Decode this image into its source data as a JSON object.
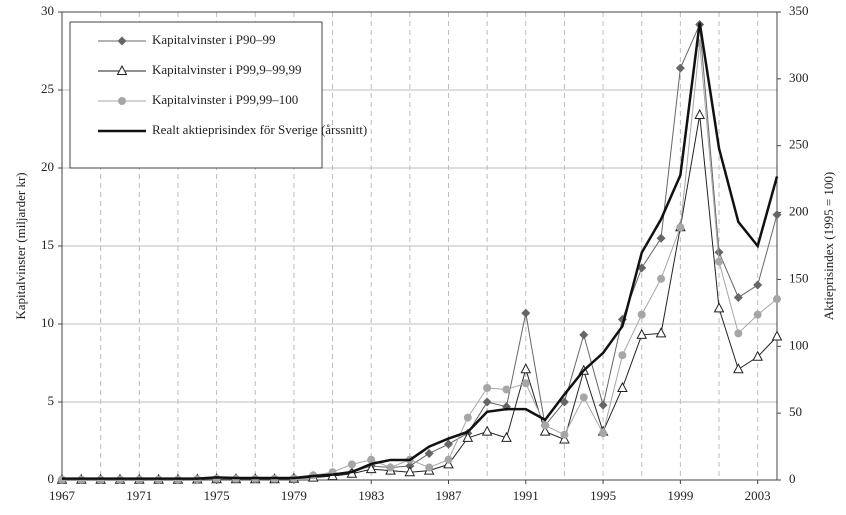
{
  "chart_data": {
    "type": "line",
    "y_label": "Kapitalvinster (miljarder kr)",
    "y2_label": "Aktieprisindex (1995 = 100)",
    "x": [
      1967,
      1968,
      1969,
      1970,
      1971,
      1972,
      1973,
      1974,
      1975,
      1976,
      1977,
      1978,
      1979,
      1980,
      1981,
      1982,
      1983,
      1984,
      1985,
      1986,
      1987,
      1988,
      1989,
      1990,
      1991,
      1992,
      1993,
      1994,
      1995,
      1996,
      1997,
      1998,
      1999,
      2000,
      2001,
      2002,
      2003,
      2004
    ],
    "xlim": [
      1967,
      2004
    ],
    "xticks": [
      1967,
      1971,
      1975,
      1979,
      1983,
      1987,
      1991,
      1995,
      1999,
      2003
    ],
    "x_grid": [
      1969,
      1971,
      1973,
      1975,
      1977,
      1979,
      1981,
      1983,
      1985,
      1987,
      1989,
      1991,
      1993,
      1995,
      1997,
      1999,
      2001,
      2003
    ],
    "ylim": [
      0,
      30
    ],
    "yticks": [
      0,
      5,
      10,
      15,
      20,
      25,
      30
    ],
    "y2lim": [
      0,
      350
    ],
    "y2ticks": [
      0,
      50,
      100,
      150,
      200,
      250,
      300,
      350
    ],
    "grid": true,
    "legend": "upper left",
    "series": [
      {
        "name": "Kapitalvinster i P90–99",
        "color": "#666666",
        "marker": "diamond",
        "values": [
          0.05,
          0.05,
          0.05,
          0.05,
          0.05,
          0.05,
          0.05,
          0.07,
          0.1,
          0.1,
          0.1,
          0.1,
          0.15,
          0.3,
          0.4,
          0.5,
          0.9,
          0.8,
          0.9,
          1.7,
          2.3,
          3.0,
          5.0,
          4.7,
          10.7,
          3.5,
          5.0,
          9.3,
          4.8,
          10.3,
          13.6,
          15.5,
          26.4,
          29.2,
          14.6,
          11.7,
          12.5,
          17.0
        ]
      },
      {
        "name": "Kapitalvinster i P99,9–99,99",
        "color": "#222222",
        "marker": "triangle",
        "values": [
          0.02,
          0.02,
          0.02,
          0.02,
          0.02,
          0.02,
          0.02,
          0.03,
          0.05,
          0.05,
          0.05,
          0.05,
          0.08,
          0.15,
          0.25,
          0.4,
          0.7,
          0.6,
          0.5,
          0.6,
          1.0,
          2.7,
          3.1,
          2.7,
          7.1,
          3.1,
          2.6,
          7.0,
          3.1,
          5.9,
          9.3,
          9.4,
          16.2,
          23.4,
          11.0,
          7.1,
          7.9,
          9.2
        ]
      },
      {
        "name": "Kapitalvinster i P99,99–100",
        "color": "#a6a6a6",
        "marker": "circle",
        "values": [
          0.03,
          0.03,
          0.03,
          0.03,
          0.03,
          0.03,
          0.03,
          0.05,
          0.08,
          0.08,
          0.08,
          0.08,
          0.1,
          0.3,
          0.5,
          1.0,
          1.3,
          0.8,
          1.3,
          0.8,
          1.3,
          4.0,
          5.9,
          5.8,
          6.2,
          3.5,
          2.9,
          5.3,
          3.0,
          8.0,
          10.6,
          12.9,
          16.2,
          28.0,
          14.0,
          9.4,
          10.6,
          11.6
        ]
      },
      {
        "name": "Realt aktieprisindex för Sverige (årssnitt)",
        "color": "#111111",
        "marker": "none",
        "axis": "y2",
        "values": [
          1,
          1,
          1,
          1,
          1,
          1,
          1,
          1,
          2,
          1.5,
          1.5,
          1.5,
          1.5,
          3,
          4,
          6,
          12,
          15,
          15,
          25,
          31,
          36,
          51,
          53,
          53,
          45,
          64,
          82,
          95,
          115,
          170,
          195,
          228,
          342,
          248,
          193,
          175,
          227
        ]
      }
    ]
  }
}
